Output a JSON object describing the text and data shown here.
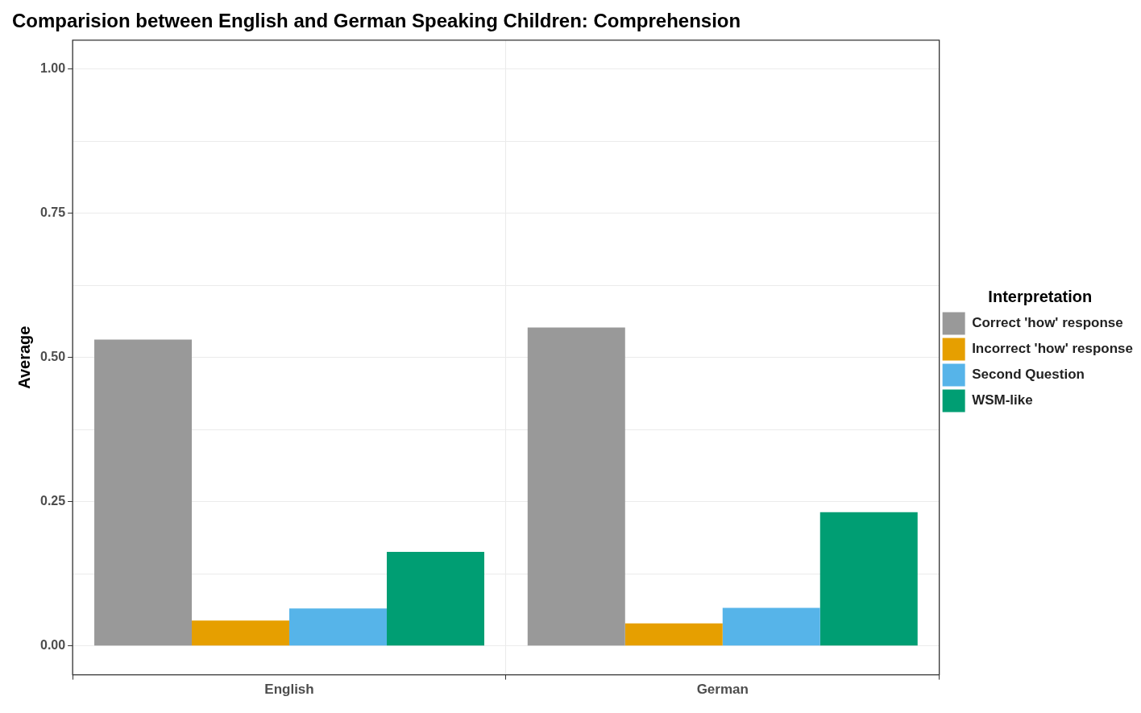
{
  "chart_data": {
    "type": "bar",
    "title": "Comparision between English and German Speaking Children: Comprehension",
    "ylabel": "Average",
    "legend_title": "Interpretation",
    "categories": [
      "English",
      "German"
    ],
    "series": [
      {
        "name": "Correct 'how' response",
        "color": "#999999",
        "values": [
          0.531,
          0.552
        ]
      },
      {
        "name": "Incorrect 'how' response",
        "color": "#e69f00",
        "values": [
          0.044,
          0.039
        ]
      },
      {
        "name": "Second Question",
        "color": "#56b4e9",
        "values": [
          0.065,
          0.066
        ]
      },
      {
        "name": "WSM-like",
        "color": "#009e73",
        "values": [
          0.163,
          0.232
        ]
      }
    ],
    "ylim": [
      -0.05,
      1.05
    ],
    "yticks": [
      {
        "value": 0,
        "label": "0.00"
      },
      {
        "value": 0.125,
        "label": null
      },
      {
        "value": 0.25,
        "label": "0.25"
      },
      {
        "value": 0.375,
        "label": null
      },
      {
        "value": 0.5,
        "label": "0.50"
      },
      {
        "value": 0.625,
        "label": null
      },
      {
        "value": 0.75,
        "label": "0.75"
      },
      {
        "value": 0.875,
        "label": null
      },
      {
        "value": 1,
        "label": "1.00"
      }
    ],
    "grid": true,
    "legend": "right"
  }
}
